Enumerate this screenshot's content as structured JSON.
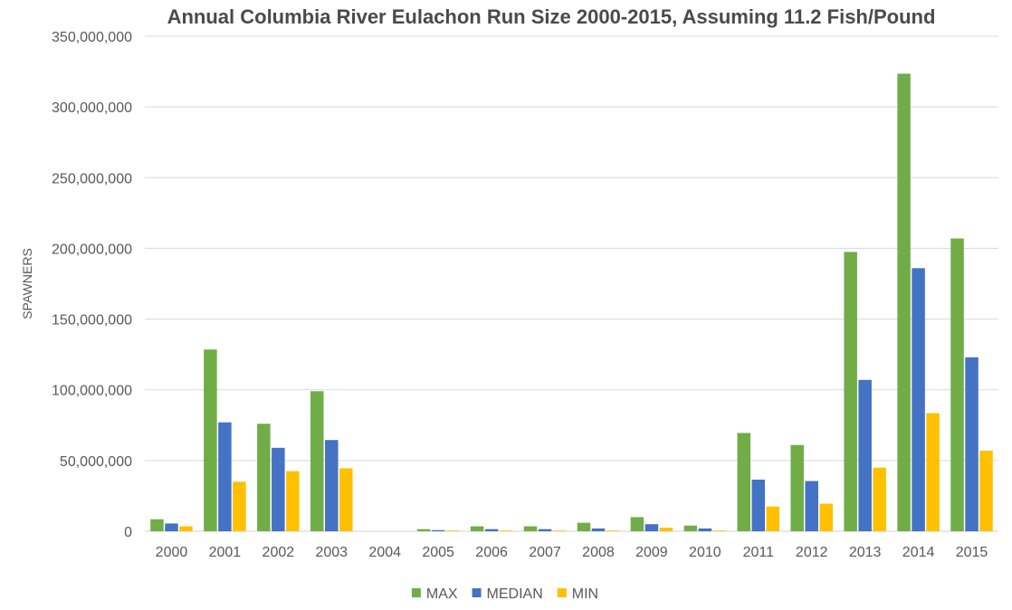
{
  "chart_data": {
    "type": "bar",
    "title": "Annual Columbia River Eulachon Run Size 2000-2015, Assuming 11.2 Fish/Pound",
    "xlabel": "",
    "ylabel": "SPAWNERS",
    "ylim": [
      0,
      350000000
    ],
    "yticks": [
      0,
      50000000,
      100000000,
      150000000,
      200000000,
      250000000,
      300000000,
      350000000
    ],
    "ytick_labels": [
      "0",
      "50,000,000",
      "100,000,000",
      "150,000,000",
      "200,000,000",
      "250,000,000",
      "300,000,000",
      "350,000,000"
    ],
    "grid": true,
    "legend_position": "bottom",
    "categories": [
      "2000",
      "2001",
      "2002",
      "2003",
      "2004",
      "2005",
      "2006",
      "2007",
      "2008",
      "2009",
      "2010",
      "2011",
      "2012",
      "2013",
      "2014",
      "2015"
    ],
    "series": [
      {
        "name": "MAX",
        "color": "#70ad47",
        "values": [
          8500000,
          128500000,
          76000000,
          99000000,
          0,
          1500000,
          3500000,
          3500000,
          6000000,
          10000000,
          4000000,
          69500000,
          61000000,
          197500000,
          323500000,
          207000000
        ]
      },
      {
        "name": "MEDIAN",
        "color": "#4472c4",
        "values": [
          5500000,
          77000000,
          59000000,
          64500000,
          0,
          800000,
          1500000,
          1500000,
          2000000,
          5000000,
          2000000,
          36500000,
          35500000,
          107000000,
          186000000,
          123000000
        ]
      },
      {
        "name": "MIN",
        "color": "#ffc000",
        "values": [
          3500000,
          35000000,
          42500000,
          44500000,
          0,
          500000,
          500000,
          500000,
          500000,
          2500000,
          500000,
          17500000,
          19500000,
          45000000,
          83500000,
          57000000
        ]
      }
    ]
  }
}
